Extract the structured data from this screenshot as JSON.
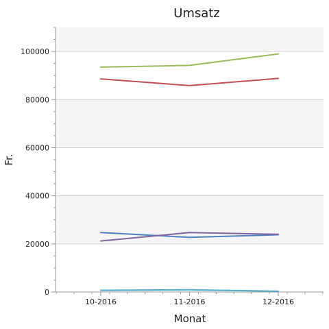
{
  "chart_data": {
    "type": "line",
    "title": "Umsatz",
    "xlabel": "Monat",
    "ylabel": "Fr.",
    "categories": [
      "10-2016",
      "11-2016",
      "12-2016"
    ],
    "ylim": [
      0,
      110000
    ],
    "yticks": [
      0,
      20000,
      40000,
      60000,
      80000,
      100000
    ],
    "ytick_labels": [
      "0",
      "20000",
      "40000",
      "60000",
      "80000",
      "100000"
    ],
    "grid": true,
    "legend": "none",
    "series": [
      {
        "color": "#9bbb59",
        "values": [
          93500,
          94200,
          99000
        ]
      },
      {
        "color": "#c0504d",
        "values": [
          88600,
          85800,
          88800
        ]
      },
      {
        "color": "#4f81bd",
        "values": [
          24700,
          22700,
          23800
        ]
      },
      {
        "color": "#8064a2",
        "values": [
          21200,
          24700,
          24000
        ]
      },
      {
        "color": "#4bacc6",
        "values": [
          700,
          900,
          300
        ]
      }
    ]
  }
}
